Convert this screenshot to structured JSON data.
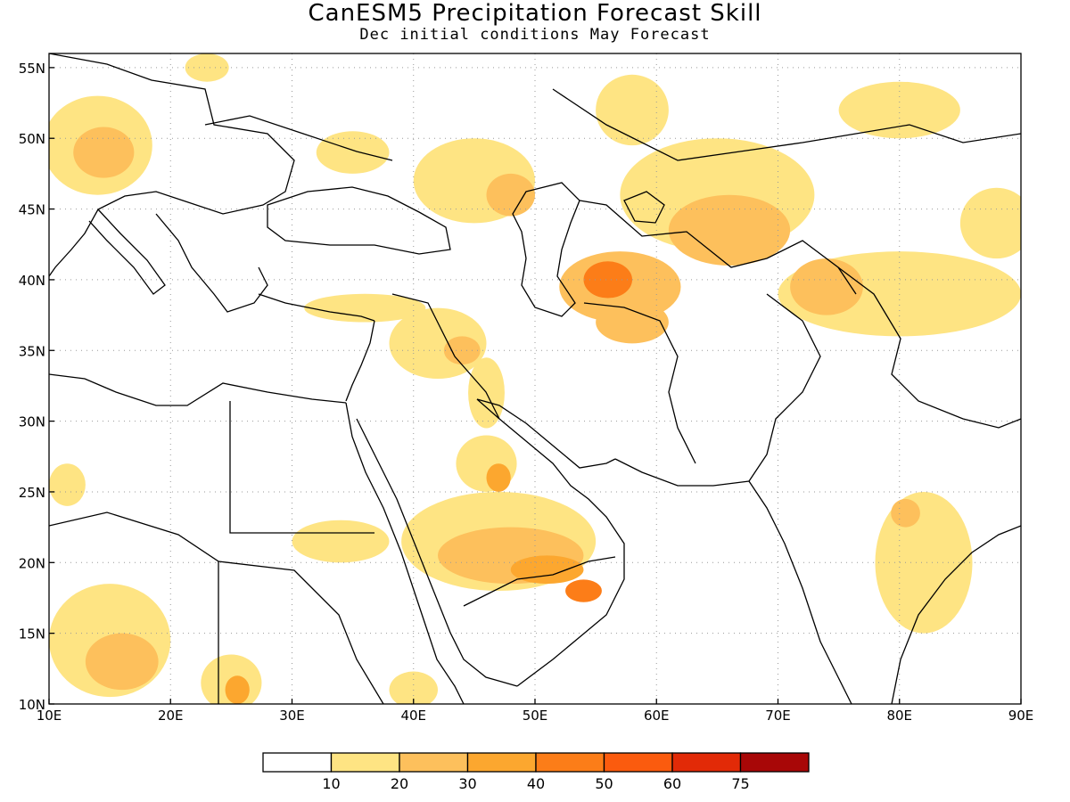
{
  "title": "CanESM5 Precipitation Forecast Skill",
  "subtitle": "Dec initial conditions  May Forecast",
  "colors": {
    "c0": "#ffffff",
    "c10": "#fee483",
    "c20": "#fdc05c",
    "c30": "#fca72f",
    "c40": "#fc7d18",
    "c50": "#fb5b0e",
    "c60": "#e22a07",
    "c75": "#a80707",
    "land_line": "#000000",
    "grid": "#999999"
  },
  "chart_data": {
    "type": "heatmap",
    "map_extent": {
      "lon": [
        10,
        90
      ],
      "lat": [
        10,
        56
      ]
    },
    "x_ticks": [
      "10E",
      "20E",
      "30E",
      "40E",
      "50E",
      "60E",
      "70E",
      "80E",
      "90E"
    ],
    "y_ticks": [
      "10N",
      "15N",
      "20N",
      "25N",
      "30N",
      "35N",
      "40N",
      "45N",
      "50N",
      "55N"
    ],
    "x_values": [
      10,
      20,
      30,
      40,
      50,
      60,
      70,
      80,
      90
    ],
    "y_values": [
      10,
      15,
      20,
      25,
      30,
      35,
      40,
      45,
      50,
      55
    ],
    "colorbar": {
      "labels": [
        "10",
        "20",
        "30",
        "40",
        "50",
        "60",
        "75"
      ],
      "bins": [
        "c0",
        "c10",
        "c20",
        "c30",
        "c40",
        "c50",
        "c60",
        "c75"
      ]
    },
    "skill_regions": [
      {
        "name": "central-europe",
        "level": "c10",
        "lon": 14,
        "lat": 49.5,
        "rx": 4.5,
        "ry": 3.5
      },
      {
        "name": "central-europe-core",
        "level": "c20",
        "lon": 14.5,
        "lat": 49,
        "rx": 2.5,
        "ry": 1.8
      },
      {
        "name": "north-sea",
        "level": "c10",
        "lon": 23,
        "lat": 55,
        "rx": 1.8,
        "ry": 1
      },
      {
        "name": "ukraine",
        "level": "c10",
        "lon": 35,
        "lat": 49,
        "rx": 3,
        "ry": 1.5
      },
      {
        "name": "russia-south",
        "level": "c10",
        "lon": 45,
        "lat": 47,
        "rx": 5,
        "ry": 3
      },
      {
        "name": "volga",
        "level": "c20",
        "lon": 48,
        "lat": 46,
        "rx": 2,
        "ry": 1.5
      },
      {
        "name": "ural",
        "level": "c10",
        "lon": 58,
        "lat": 52,
        "rx": 3,
        "ry": 2.5
      },
      {
        "name": "kazakhstan",
        "level": "c10",
        "lon": 65,
        "lat": 46,
        "rx": 8,
        "ry": 4
      },
      {
        "name": "kazakhstan-core",
        "level": "c20",
        "lon": 66,
        "lat": 43.5,
        "rx": 5,
        "ry": 2.5
      },
      {
        "name": "altai",
        "level": "c10",
        "lon": 80,
        "lat": 52,
        "rx": 5,
        "ry": 2
      },
      {
        "name": "mongolia-west",
        "level": "c10",
        "lon": 88,
        "lat": 44,
        "rx": 3,
        "ry": 2.5
      },
      {
        "name": "turkmenistan",
        "level": "c20",
        "lon": 57,
        "lat": 39.5,
        "rx": 5,
        "ry": 2.5
      },
      {
        "name": "turkmenistan-core",
        "level": "c40",
        "lon": 56,
        "lat": 40,
        "rx": 2,
        "ry": 1.3
      },
      {
        "name": "iran-north",
        "level": "c20",
        "lon": 58,
        "lat": 37,
        "rx": 3,
        "ry": 1.5
      },
      {
        "name": "tajik-xinjiang",
        "level": "c10",
        "lon": 80,
        "lat": 39,
        "rx": 10,
        "ry": 3
      },
      {
        "name": "tajikistan",
        "level": "c20",
        "lon": 74,
        "lat": 39.5,
        "rx": 3,
        "ry": 2
      },
      {
        "name": "turkey",
        "level": "c10",
        "lon": 36,
        "lat": 38,
        "rx": 5,
        "ry": 1
      },
      {
        "name": "iraq-syria",
        "level": "c10",
        "lon": 42,
        "lat": 35.5,
        "rx": 4,
        "ry": 2.5
      },
      {
        "name": "iraq-core",
        "level": "c20",
        "lon": 44,
        "lat": 35,
        "rx": 1.5,
        "ry": 1
      },
      {
        "name": "zagros",
        "level": "c10",
        "lon": 46,
        "lat": 32,
        "rx": 1.5,
        "ry": 2.5
      },
      {
        "name": "arabia-north",
        "level": "c10",
        "lon": 46,
        "lat": 27,
        "rx": 2.5,
        "ry": 2
      },
      {
        "name": "arabia-north-core",
        "level": "c30",
        "lon": 47,
        "lat": 26,
        "rx": 1,
        "ry": 1
      },
      {
        "name": "arabia-central",
        "level": "c10",
        "lon": 47,
        "lat": 21.5,
        "rx": 8,
        "ry": 3.5
      },
      {
        "name": "arabia-central-mid",
        "level": "c20",
        "lon": 48,
        "lat": 20.5,
        "rx": 6,
        "ry": 2
      },
      {
        "name": "arabia-central-core",
        "level": "c30",
        "lon": 51,
        "lat": 19.5,
        "rx": 3,
        "ry": 1
      },
      {
        "name": "oman",
        "level": "c40",
        "lon": 54,
        "lat": 18,
        "rx": 1.5,
        "ry": 0.8
      },
      {
        "name": "sudan-north",
        "level": "c10",
        "lon": 34,
        "lat": 21.5,
        "rx": 4,
        "ry": 1.5
      },
      {
        "name": "chad",
        "level": "c10",
        "lon": 15,
        "lat": 14.5,
        "rx": 5,
        "ry": 4
      },
      {
        "name": "chad-core",
        "level": "c20",
        "lon": 16,
        "lat": 13,
        "rx": 3,
        "ry": 2
      },
      {
        "name": "sudan-south",
        "level": "c10",
        "lon": 25,
        "lat": 11.5,
        "rx": 2.5,
        "ry": 2
      },
      {
        "name": "sudan-south-core",
        "level": "c30",
        "lon": 25.5,
        "lat": 11,
        "rx": 1,
        "ry": 1
      },
      {
        "name": "india-east",
        "level": "c10",
        "lon": 82,
        "lat": 20,
        "rx": 4,
        "ry": 5
      },
      {
        "name": "india-east-core",
        "level": "c20",
        "lon": 80.5,
        "lat": 23.5,
        "rx": 1.2,
        "ry": 1
      },
      {
        "name": "libya-west",
        "level": "c10",
        "lon": 11.5,
        "lat": 25.5,
        "rx": 1.5,
        "ry": 1.5
      },
      {
        "name": "ethiopia",
        "level": "c10",
        "lon": 40,
        "lat": 11,
        "rx": 2,
        "ry": 1.3
      }
    ]
  }
}
